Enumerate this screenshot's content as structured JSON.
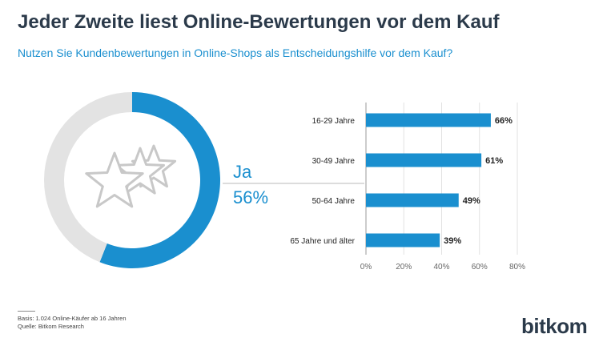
{
  "header": {
    "title": "Jeder Zweite liest Online-Bewertungen vor dem Kauf",
    "subtitle": "Nutzen Sie Kundenbewertungen in Online-Shops als Entscheidungshilfe vor dem Kauf?"
  },
  "footer": {
    "basis": "Basis: 1.024 Online-Käufer ab 16 Jahren",
    "source": "Quelle: Bitkom Research"
  },
  "logo": {
    "text": "bitkom"
  },
  "icons": {
    "center": "stars-icon"
  },
  "colors": {
    "accent": "#1a8fcf",
    "track": "#e3e3e3",
    "title": "#2b3a4a"
  },
  "chart_data": [
    {
      "type": "pie",
      "variant": "donut",
      "categories": [
        "Ja",
        ""
      ],
      "values": [
        56,
        44
      ],
      "label": "Ja",
      "value_label": "56%"
    },
    {
      "type": "bar",
      "orientation": "horizontal",
      "categories": [
        "16-29 Jahre",
        "30-49 Jahre",
        "50-64 Jahre",
        "65 Jahre und älter"
      ],
      "values": [
        66,
        61,
        49,
        39
      ],
      "value_labels": [
        "66%",
        "61%",
        "49%",
        "39%"
      ],
      "xlim": [
        0,
        80
      ],
      "ticks": [
        0,
        20,
        40,
        60,
        80
      ],
      "tick_labels": [
        "0%",
        "20%",
        "40%",
        "60%",
        "80%"
      ],
      "grid": true
    }
  ]
}
